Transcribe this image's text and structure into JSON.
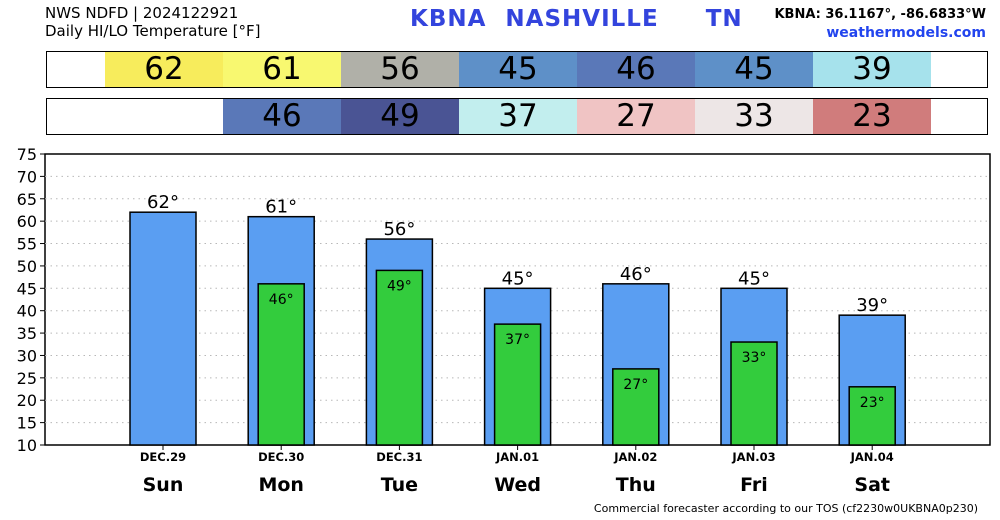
{
  "header": {
    "line1": "NWS NDFD | 2024122921",
    "line2": "Daily HI/LO Temperature [°F]",
    "station": "KBNA",
    "city": "NASHVILLE",
    "state": "TN",
    "coords": "KBNA: 36.1167°, -86.6833°W",
    "site": "weathermodels.com"
  },
  "footer": "Commercial forecaster according to our TOS (cf2230w0UKBNA0p230)",
  "hi_strip": [
    {
      "text": "62",
      "color": "#f7ec5c"
    },
    {
      "text": "61",
      "color": "#f8f870"
    },
    {
      "text": "56",
      "color": "#b0b0a8"
    },
    {
      "text": "45",
      "color": "#5e90c8"
    },
    {
      "text": "46",
      "color": "#5a78b8"
    },
    {
      "text": "45",
      "color": "#5e90c8"
    },
    {
      "text": "39",
      "color": "#a6e2ec"
    }
  ],
  "lo_strip": [
    {
      "text": "",
      "color": "#ffffff"
    },
    {
      "text": "46",
      "color": "#5a78b8"
    },
    {
      "text": "49",
      "color": "#4a5494"
    },
    {
      "text": "37",
      "color": "#c2eeee"
    },
    {
      "text": "27",
      "color": "#f0c4c4"
    },
    {
      "text": "33",
      "color": "#ede6e6"
    },
    {
      "text": "23",
      "color": "#d07c7c"
    }
  ],
  "chart_data": {
    "type": "bar",
    "categories": [
      "DEC.29",
      "DEC.30",
      "DEC.31",
      "JAN.01",
      "JAN.02",
      "JAN.03",
      "JAN.04"
    ],
    "weekdays": [
      "Sun",
      "Mon",
      "Tue",
      "Wed",
      "Thu",
      "Fri",
      "Sat"
    ],
    "series": [
      {
        "values": [
          62,
          61,
          56,
          45,
          46,
          45,
          39
        ],
        "labels": [
          "62°",
          "61°",
          "56°",
          "45°",
          "46°",
          "45°",
          "39°"
        ],
        "color": "#5a9ef2"
      },
      {
        "values": [
          null,
          46,
          49,
          37,
          27,
          33,
          23
        ],
        "labels": [
          "",
          "46°",
          "49°",
          "37°",
          "27°",
          "33°",
          "23°"
        ],
        "color": "#33cc3d"
      }
    ],
    "yticks": [
      "75",
      "70",
      "65",
      "60",
      "55",
      "50",
      "45",
      "40",
      "35",
      "30",
      "25",
      "20",
      "15",
      "10"
    ],
    "ylim": [
      10,
      75
    ],
    "grid": true
  }
}
